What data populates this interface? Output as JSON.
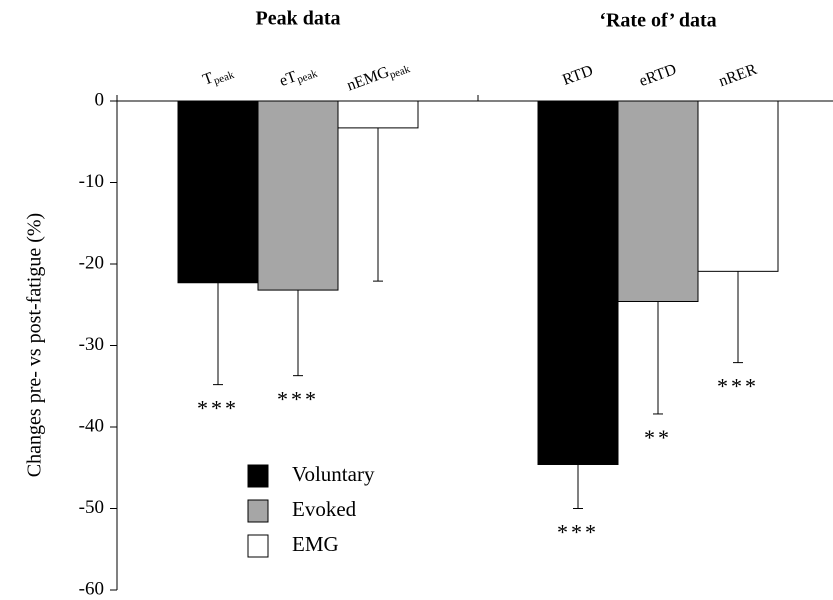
{
  "chart_data": {
    "type": "bar",
    "group_labels": [
      "Peak data",
      "‘Rate of’ data"
    ],
    "categories": [
      "T",
      "eT",
      "nEMG",
      "RTD",
      "eRTD",
      "nRER"
    ],
    "category_subscripts": [
      "peak",
      "peak",
      "peak",
      null,
      null,
      null
    ],
    "ylabel": "Changes pre- vs post-fatigue (%)",
    "ylim": [
      -60,
      0
    ],
    "yticks": [
      0,
      -10,
      -20,
      -30,
      -40,
      -50,
      -60
    ],
    "series": [
      {
        "name": "Voluntary",
        "color": "#000000",
        "values": [
          -22.3,
          null,
          null,
          -44.6,
          null,
          null
        ],
        "errors": [
          12.5,
          null,
          null,
          5.4,
          null,
          null
        ],
        "significance": [
          "***",
          null,
          null,
          "***",
          null,
          null
        ]
      },
      {
        "name": "Evoked",
        "color": "#a6a6a6",
        "values": [
          null,
          -23.2,
          null,
          null,
          -24.6,
          null
        ],
        "errors": [
          null,
          10.5,
          null,
          null,
          13.8,
          null
        ],
        "significance": [
          null,
          "***",
          null,
          null,
          "**",
          null
        ]
      },
      {
        "name": "EMG",
        "color": "#ffffff",
        "values": [
          null,
          null,
          -3.3,
          null,
          null,
          -20.9
        ],
        "errors": [
          null,
          null,
          18.8,
          null,
          null,
          11.2
        ],
        "significance": [
          null,
          null,
          null,
          null,
          null,
          "***"
        ]
      }
    ]
  }
}
